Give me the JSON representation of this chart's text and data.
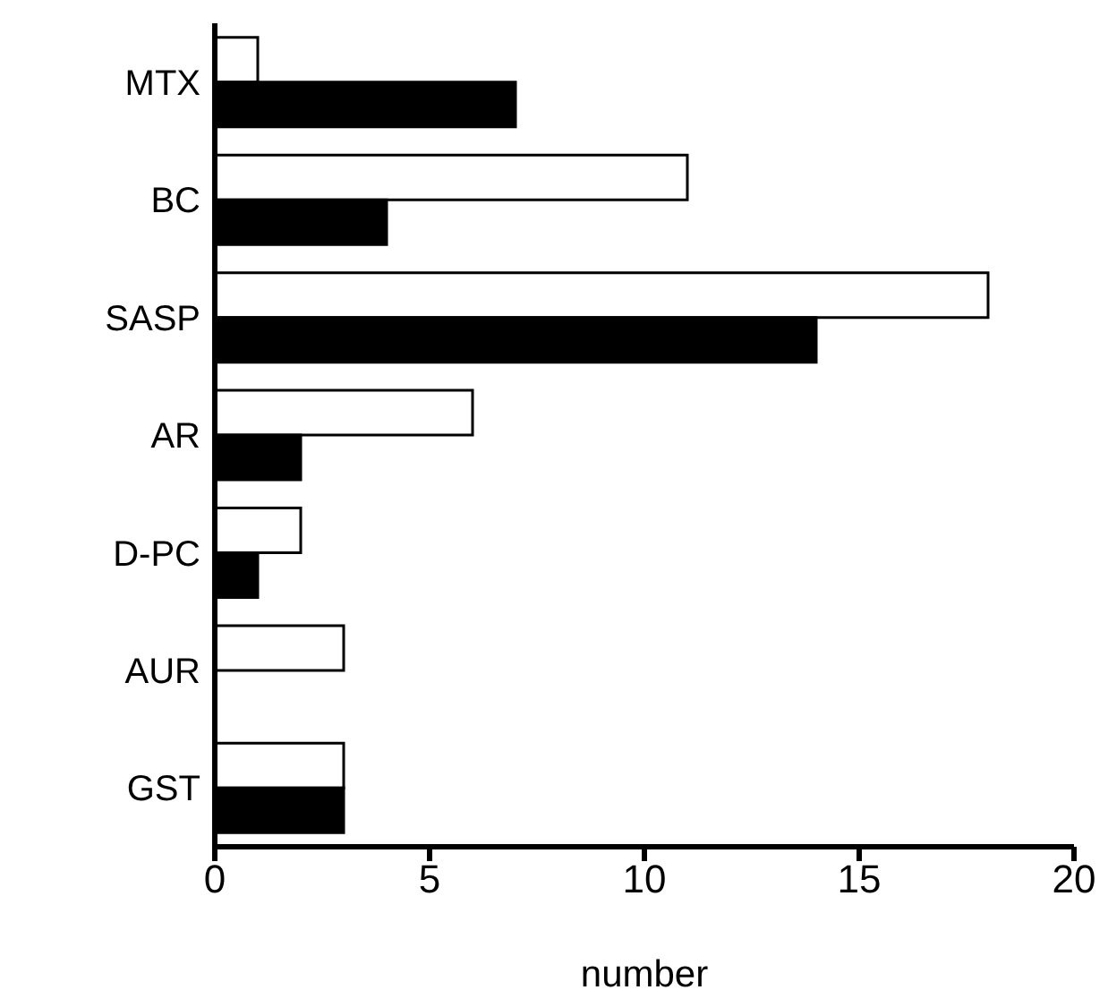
{
  "chart_data": {
    "type": "bar",
    "orientation": "horizontal",
    "xlabel": "number",
    "categories": [
      "MTX",
      "BC",
      "SASP",
      "AR",
      "D-PC",
      "AUR",
      "GST"
    ],
    "series": [
      {
        "color": "#ffffff",
        "values": [
          1,
          11,
          18,
          6,
          2,
          3,
          3
        ]
      },
      {
        "color": "#000000",
        "values": [
          7,
          4,
          14,
          2,
          1,
          0,
          3
        ]
      }
    ],
    "xlim": [
      0,
      20
    ],
    "xticks": [
      0,
      5,
      10,
      15,
      20
    ],
    "grid": false,
    "legend": false
  }
}
